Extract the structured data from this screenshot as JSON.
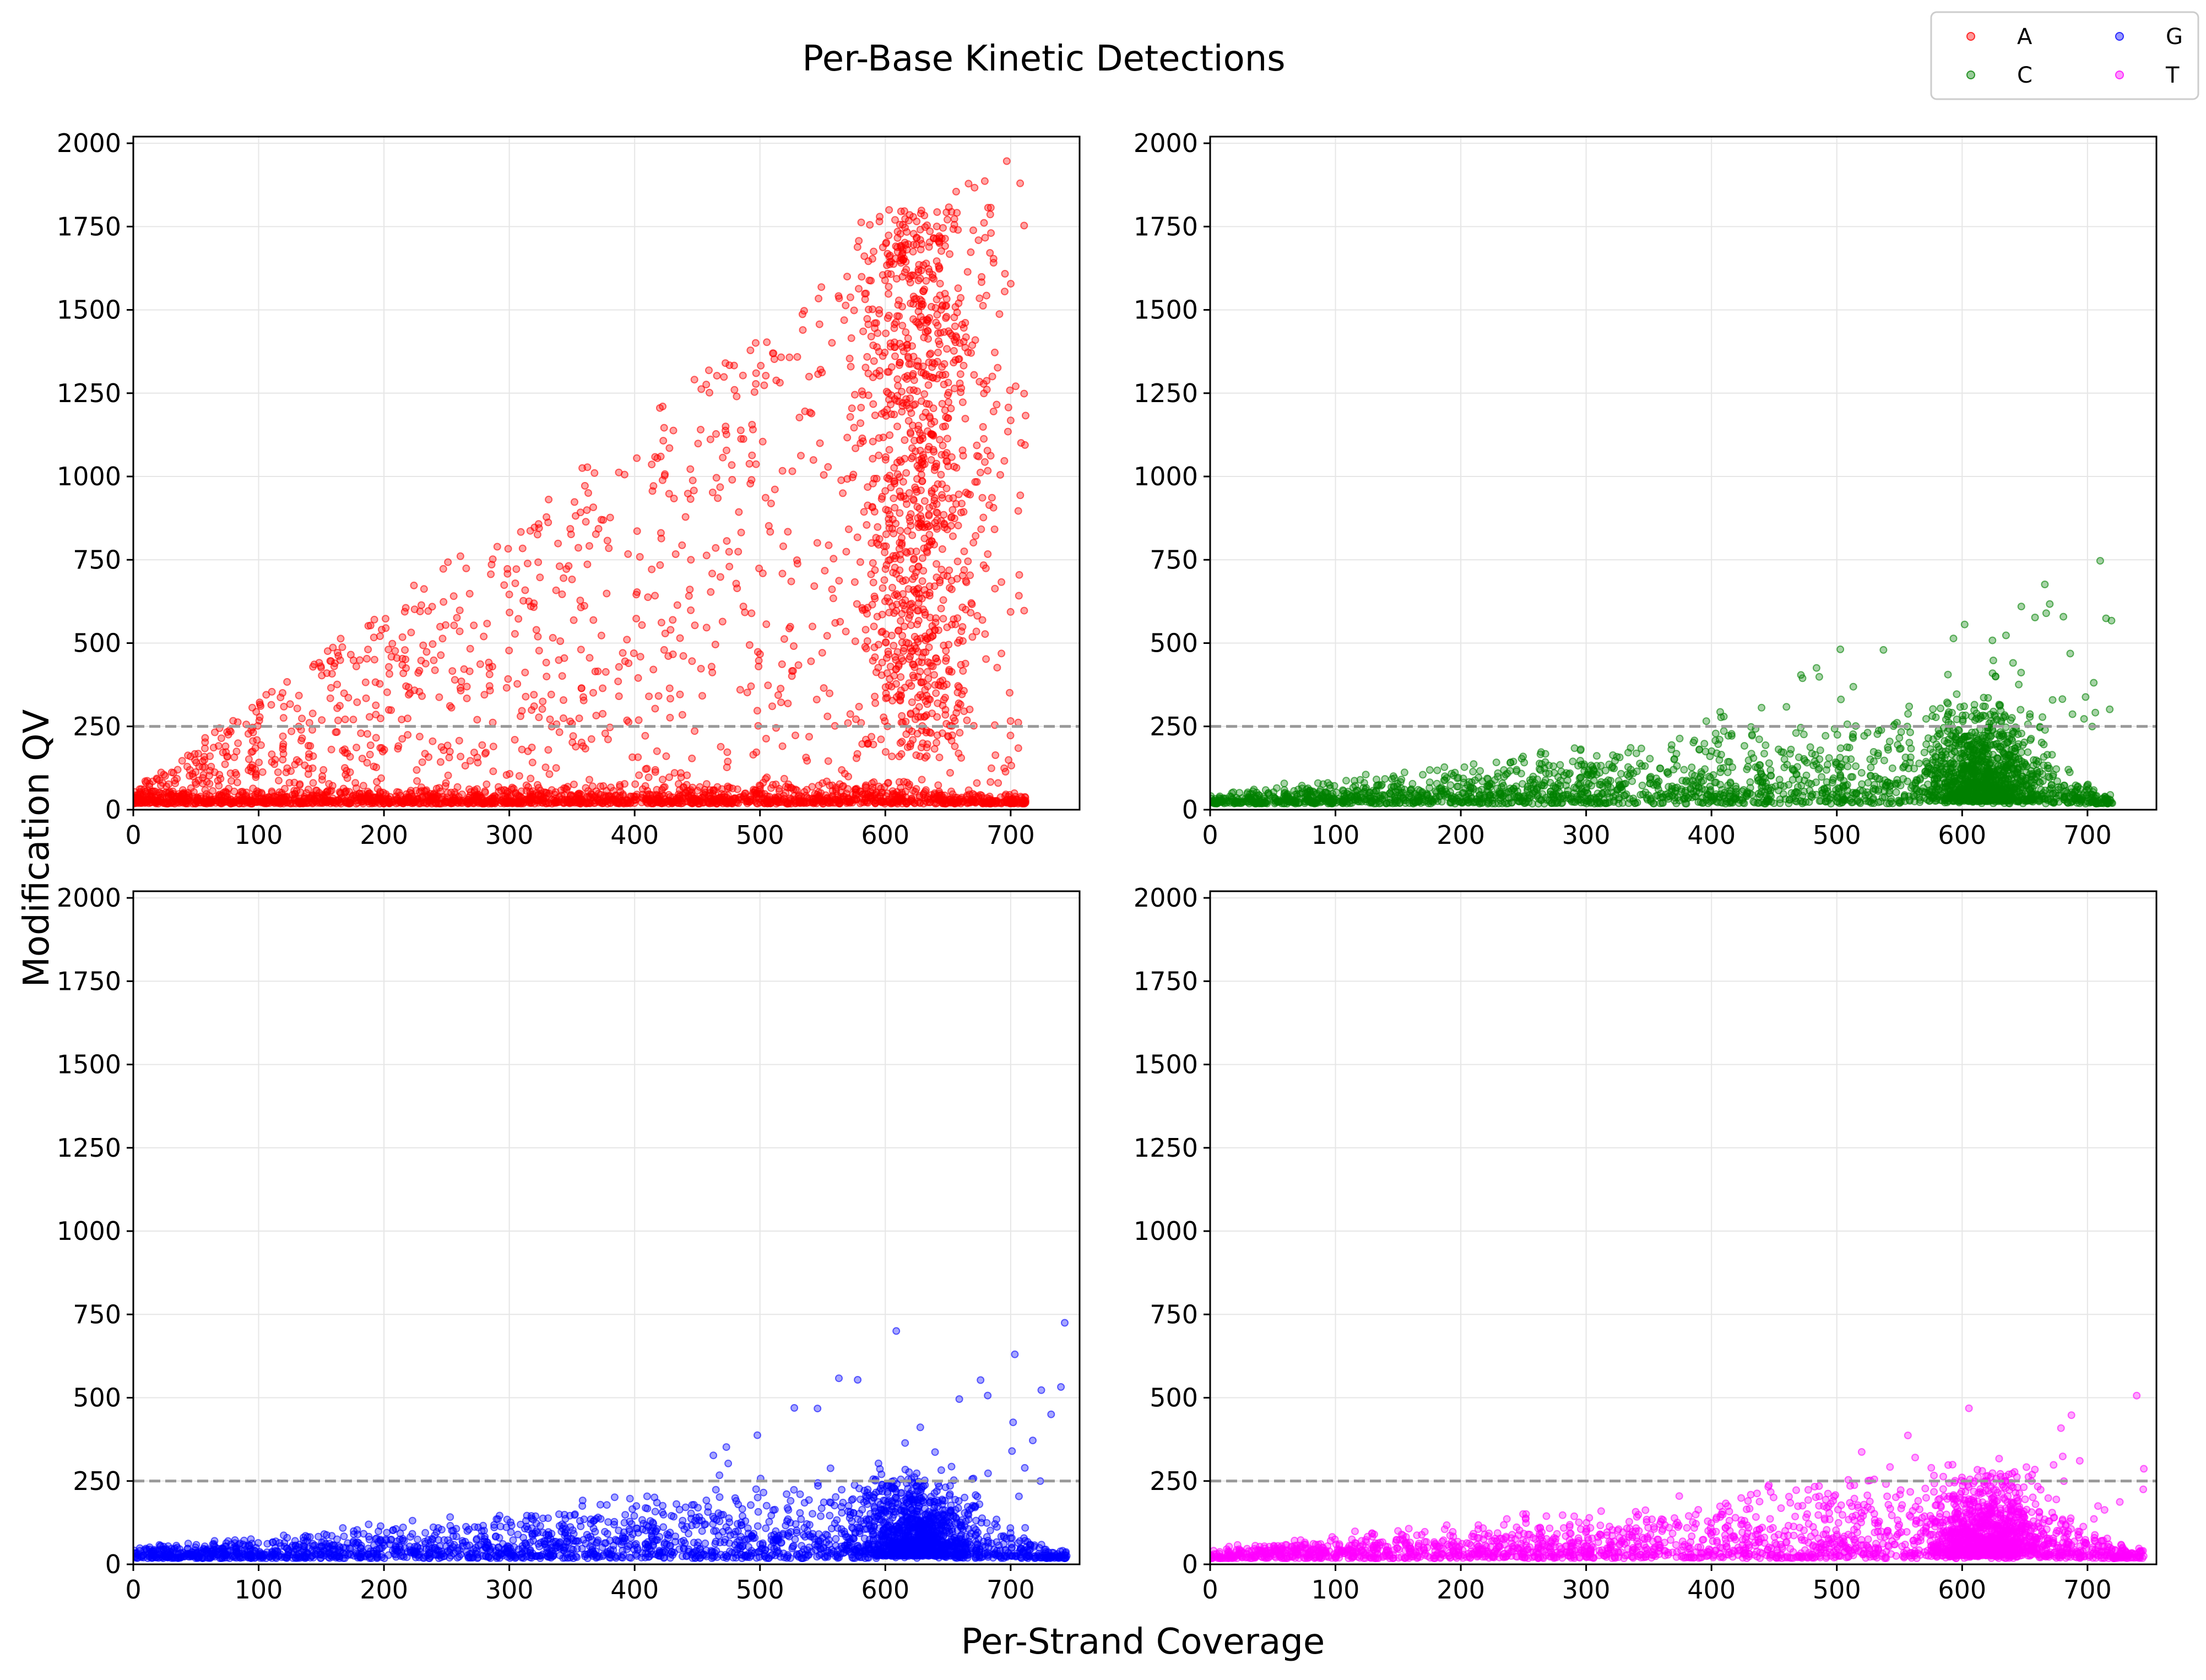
{
  "figure": {
    "title": "Per-Base Kinetic Detections",
    "xlabel": "Per-Strand Coverage",
    "ylabel": "Modification QV"
  },
  "legend": {
    "placement": "top-right",
    "entries": [
      {
        "label": "A",
        "color": "#ff0000"
      },
      {
        "label": "C",
        "color": "#008000"
      },
      {
        "label": "G",
        "color": "#0000ff"
      },
      {
        "label": "T",
        "color": "#ff00ff"
      }
    ]
  },
  "chart_data": [
    {
      "type": "scatter",
      "series_name": "A",
      "color": "#ff0000",
      "xlim": [
        0,
        755
      ],
      "ylim": [
        0,
        2020
      ],
      "xticks": [
        0,
        100,
        200,
        300,
        400,
        500,
        600,
        700
      ],
      "yticks": [
        0,
        250,
        500,
        750,
        1000,
        1250,
        1500,
        1750,
        2000
      ],
      "threshold": 250,
      "grid": true,
      "distribution": {
        "baseline_max": 60,
        "peak_x": 625,
        "x_max": 712,
        "outlier_max": 2010
      }
    },
    {
      "type": "scatter",
      "series_name": "C",
      "color": "#008000",
      "xlim": [
        0,
        755
      ],
      "ylim": [
        0,
        2020
      ],
      "xticks": [
        0,
        100,
        200,
        300,
        400,
        500,
        600,
        700
      ],
      "yticks": [
        0,
        250,
        500,
        750,
        1000,
        1250,
        1500,
        1750,
        2000
      ],
      "threshold": 250,
      "grid": true,
      "distribution": {
        "baseline_max": 260,
        "peak_x": 615,
        "x_max": 720,
        "outlier_max": 870
      }
    },
    {
      "type": "scatter",
      "series_name": "G",
      "color": "#0000ff",
      "xlim": [
        0,
        755
      ],
      "ylim": [
        0,
        2020
      ],
      "xticks": [
        0,
        100,
        200,
        300,
        400,
        500,
        600,
        700
      ],
      "yticks": [
        0,
        250,
        500,
        750,
        1000,
        1250,
        1500,
        1750,
        2000
      ],
      "threshold": 250,
      "grid": true,
      "distribution": {
        "baseline_max": 220,
        "peak_x": 625,
        "x_max": 745,
        "outlier_max": 760
      }
    },
    {
      "type": "scatter",
      "series_name": "T",
      "color": "#ff00ff",
      "xlim": [
        0,
        755
      ],
      "ylim": [
        0,
        2020
      ],
      "xticks": [
        0,
        100,
        200,
        300,
        400,
        500,
        600,
        700
      ],
      "yticks": [
        0,
        250,
        500,
        750,
        1000,
        1250,
        1500,
        1750,
        2000
      ],
      "threshold": 250,
      "grid": true,
      "distribution": {
        "baseline_max": 230,
        "peak_x": 620,
        "x_max": 745,
        "outlier_max": 540
      }
    }
  ]
}
